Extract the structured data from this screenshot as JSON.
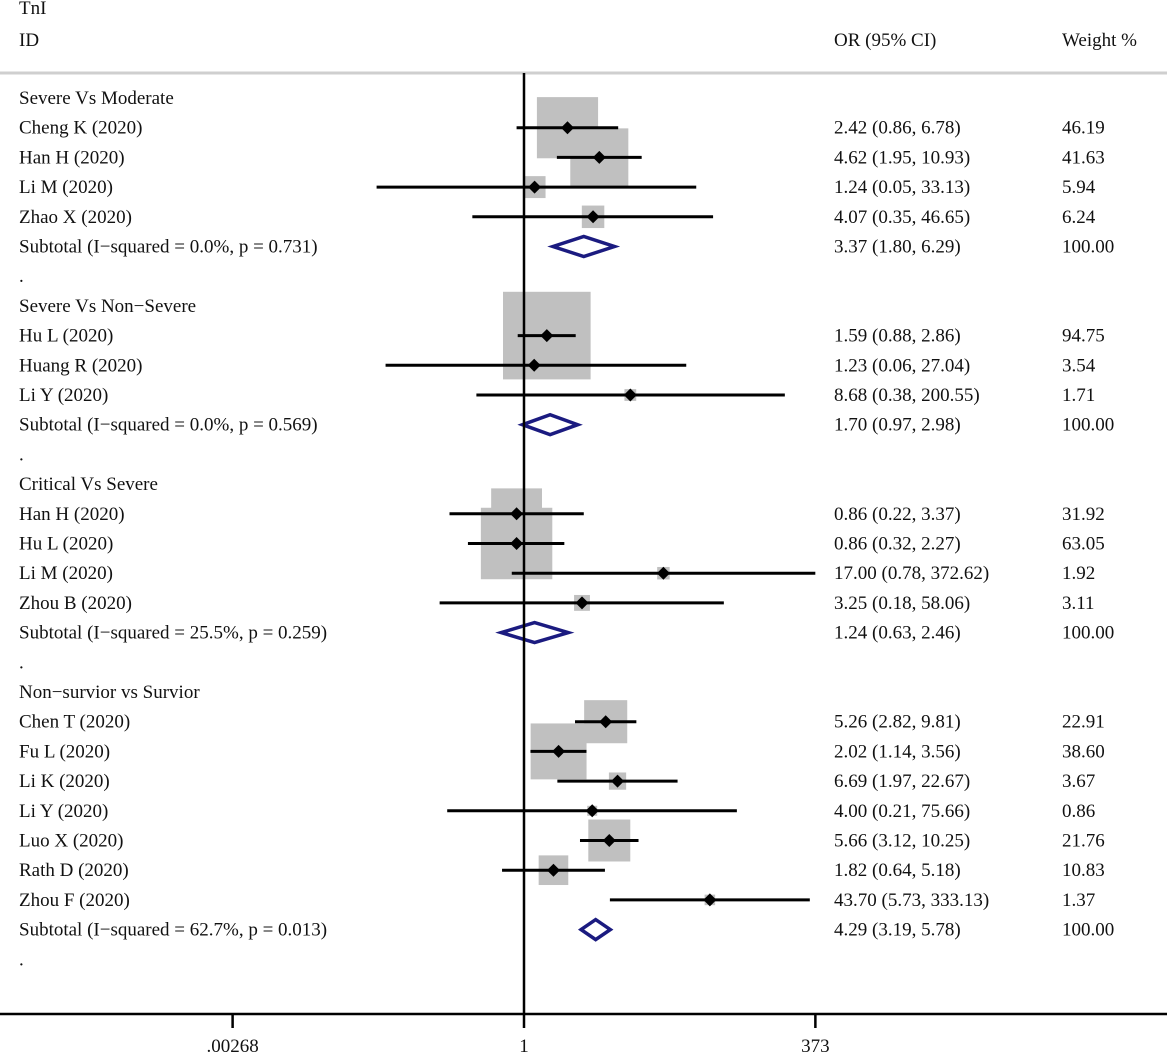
{
  "chart_data": {
    "type": "forest",
    "title": "TnI",
    "columns": {
      "id": "ID",
      "estimate": "OR (95% CI)",
      "weight": "Weight %"
    },
    "x_scale": "log",
    "x_ticks": [
      {
        "value": 0.00268,
        "label": ".00268"
      },
      {
        "value": 1,
        "label": "1"
      },
      {
        "value": 373,
        "label": "373"
      }
    ],
    "xlim": [
      0.00268,
      373
    ],
    "null_line": 1,
    "colors": {
      "box": "#c0c0c0",
      "diamond": "#1b1b80",
      "line": "#000000"
    },
    "groups": [
      {
        "name": "Severe Vs Moderate",
        "studies": [
          {
            "id": "Cheng K (2020)",
            "or": 2.42,
            "lo": 0.86,
            "hi": 6.78,
            "ci_text": "2.42 (0.86, 6.78)",
            "weight": "46.19"
          },
          {
            "id": "Han H (2020)",
            "or": 4.62,
            "lo": 1.95,
            "hi": 10.93,
            "ci_text": "4.62 (1.95, 10.93)",
            "weight": "41.63"
          },
          {
            "id": "Li M (2020)",
            "or": 1.24,
            "lo": 0.05,
            "hi": 33.13,
            "ci_text": "1.24 (0.05, 33.13)",
            "weight": "5.94"
          },
          {
            "id": "Zhao X (2020)",
            "or": 4.07,
            "lo": 0.35,
            "hi": 46.65,
            "ci_text": "4.07 (0.35, 46.65)",
            "weight": "6.24"
          }
        ],
        "subtotal": {
          "label": "Subtotal  (I−squared = 0.0%, p = 0.731)",
          "or": 3.37,
          "lo": 1.8,
          "hi": 6.29,
          "ci_text": "3.37 (1.80, 6.29)",
          "weight": "100.00"
        }
      },
      {
        "name": "Severe Vs Non−Severe",
        "studies": [
          {
            "id": "Hu L (2020)",
            "or": 1.59,
            "lo": 0.88,
            "hi": 2.86,
            "ci_text": "1.59 (0.88, 2.86)",
            "weight": "94.75"
          },
          {
            "id": "Huang R (2020)",
            "or": 1.23,
            "lo": 0.06,
            "hi": 27.04,
            "ci_text": "1.23 (0.06, 27.04)",
            "weight": "3.54"
          },
          {
            "id": "Li Y (2020)",
            "or": 8.68,
            "lo": 0.38,
            "hi": 200.55,
            "ci_text": "8.68 (0.38, 200.55)",
            "weight": "1.71"
          }
        ],
        "subtotal": {
          "label": "Subtotal  (I−squared = 0.0%, p = 0.569)",
          "or": 1.7,
          "lo": 0.97,
          "hi": 2.98,
          "ci_text": "1.70 (0.97, 2.98)",
          "weight": "100.00"
        }
      },
      {
        "name": "Critical Vs Severe",
        "studies": [
          {
            "id": "Han H (2020)",
            "or": 0.86,
            "lo": 0.22,
            "hi": 3.37,
            "ci_text": "0.86 (0.22, 3.37)",
            "weight": "31.92"
          },
          {
            "id": "Hu L (2020)",
            "or": 0.86,
            "lo": 0.32,
            "hi": 2.27,
            "ci_text": "0.86 (0.32, 2.27)",
            "weight": "63.05"
          },
          {
            "id": "Li M (2020)",
            "or": 17.0,
            "lo": 0.78,
            "hi": 372.62,
            "ci_text": "17.00 (0.78, 372.62)",
            "weight": "1.92"
          },
          {
            "id": "Zhou B (2020)",
            "or": 3.25,
            "lo": 0.18,
            "hi": 58.06,
            "ci_text": "3.25 (0.18, 58.06)",
            "weight": "3.11"
          }
        ],
        "subtotal": {
          "label": "Subtotal  (I−squared = 25.5%, p = 0.259)",
          "or": 1.24,
          "lo": 0.63,
          "hi": 2.46,
          "ci_text": "1.24 (0.63, 2.46)",
          "weight": "100.00"
        }
      },
      {
        "name": "Non−survior vs Survior",
        "studies": [
          {
            "id": "Chen T (2020)",
            "or": 5.26,
            "lo": 2.82,
            "hi": 9.81,
            "ci_text": "5.26 (2.82, 9.81)",
            "weight": "22.91"
          },
          {
            "id": "Fu L (2020)",
            "or": 2.02,
            "lo": 1.14,
            "hi": 3.56,
            "ci_text": "2.02 (1.14, 3.56)",
            "weight": "38.60"
          },
          {
            "id": "Li K (2020)",
            "or": 6.69,
            "lo": 1.97,
            "hi": 22.67,
            "ci_text": "6.69 (1.97, 22.67)",
            "weight": "3.67"
          },
          {
            "id": "Li Y (2020)",
            "or": 4.0,
            "lo": 0.21,
            "hi": 75.66,
            "ci_text": "4.00 (0.21, 75.66)",
            "weight": "0.86"
          },
          {
            "id": "Luo X (2020)",
            "or": 5.66,
            "lo": 3.12,
            "hi": 10.25,
            "ci_text": "5.66 (3.12, 10.25)",
            "weight": "21.76"
          },
          {
            "id": "Rath D (2020)",
            "or": 1.82,
            "lo": 0.64,
            "hi": 5.18,
            "ci_text": "1.82 (0.64, 5.18)",
            "weight": "10.83"
          },
          {
            "id": "Zhou F (2020)",
            "or": 43.7,
            "lo": 5.73,
            "hi": 333.13,
            "ci_text": "43.70 (5.73, 333.13)",
            "weight": "1.37"
          }
        ],
        "subtotal": {
          "label": "Subtotal  (I−squared = 62.7%, p = 0.013)",
          "or": 4.29,
          "lo": 3.19,
          "hi": 5.78,
          "ci_text": "4.29 (3.19, 5.78)",
          "weight": "100.00"
        }
      }
    ],
    "separator": "."
  }
}
